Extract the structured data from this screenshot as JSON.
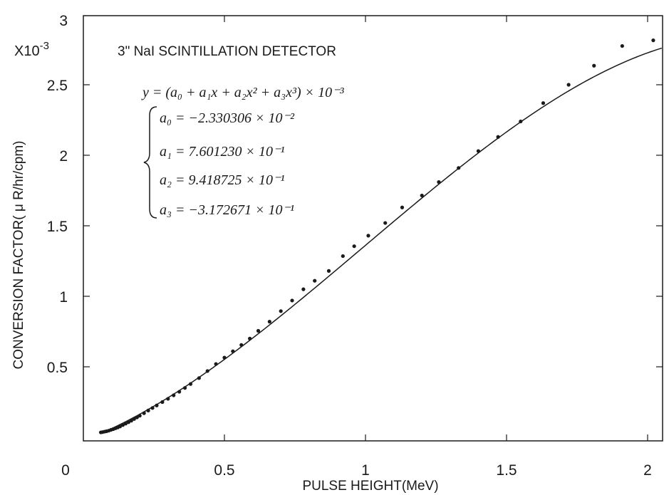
{
  "chart_data": {
    "type": "scatter",
    "title": "3\" NaI SCINTILLATION DETECTOR",
    "xlabel": "PULSE HEIGHT(MeV)",
    "ylabel": "CONVERSION FACTOR( μ R/hr/cpm)",
    "y_multiplier": "X10",
    "y_multiplier_exp": "-3",
    "xlim": [
      0,
      2.05
    ],
    "ylim": [
      0,
      3
    ],
    "x_ticks": [
      0,
      0.5,
      1,
      1.5,
      2
    ],
    "x_tick_labels": [
      "0",
      "0.5",
      "1",
      "1.5",
      "2"
    ],
    "y_ticks": [
      0.5,
      1,
      1.5,
      2,
      2.5,
      3
    ],
    "y_tick_labels": [
      "0.5",
      "1",
      "1.5",
      "2",
      "2.5",
      "3"
    ],
    "grid": false,
    "equation": {
      "main": "y = (a₀ + a₁x + a₂x² + a₃x³) × 10⁻³",
      "coefficients": [
        "a₀ = −2.330306 × 10⁻²",
        "a₁ = 7.601230 × 10⁻¹",
        "a₂ = 9.418725 × 10⁻¹",
        "a₃ = −3.172671 × 10⁻¹"
      ],
      "a": [
        -0.02330306,
        0.760123,
        0.9418725,
        -0.3172671
      ]
    },
    "series": [
      {
        "kind": "points",
        "x": [
          0.062,
          0.068,
          0.075,
          0.082,
          0.09,
          0.098,
          0.106,
          0.114,
          0.122,
          0.13,
          0.14,
          0.15,
          0.16,
          0.17,
          0.18,
          0.19,
          0.2,
          0.215,
          0.23,
          0.245,
          0.26,
          0.28,
          0.3,
          0.32,
          0.34,
          0.36,
          0.38,
          0.41,
          0.44,
          0.47,
          0.5,
          0.53,
          0.56,
          0.59,
          0.62,
          0.66,
          0.7,
          0.74,
          0.78,
          0.82,
          0.87,
          0.92,
          0.96,
          1.01,
          1.07,
          1.13,
          1.2,
          1.26,
          1.33,
          1.4,
          1.47,
          1.55,
          1.63,
          1.72,
          1.81,
          1.91,
          2.02
        ],
        "y": [
          0.035,
          0.037,
          0.04,
          0.043,
          0.047,
          0.053,
          0.058,
          0.064,
          0.07,
          0.077,
          0.087,
          0.097,
          0.107,
          0.118,
          0.13,
          0.141,
          0.153,
          0.171,
          0.19,
          0.208,
          0.226,
          0.25,
          0.273,
          0.298,
          0.323,
          0.35,
          0.378,
          0.42,
          0.47,
          0.52,
          0.565,
          0.61,
          0.655,
          0.7,
          0.755,
          0.82,
          0.895,
          0.97,
          1.05,
          1.11,
          1.18,
          1.285,
          1.355,
          1.43,
          1.52,
          1.63,
          1.715,
          1.81,
          1.91,
          2.03,
          2.13,
          2.24,
          2.37,
          2.5,
          2.635,
          2.775,
          2.815
        ]
      },
      {
        "kind": "fit-curve",
        "x_start": 0.06,
        "x_end": 2.05
      }
    ]
  }
}
